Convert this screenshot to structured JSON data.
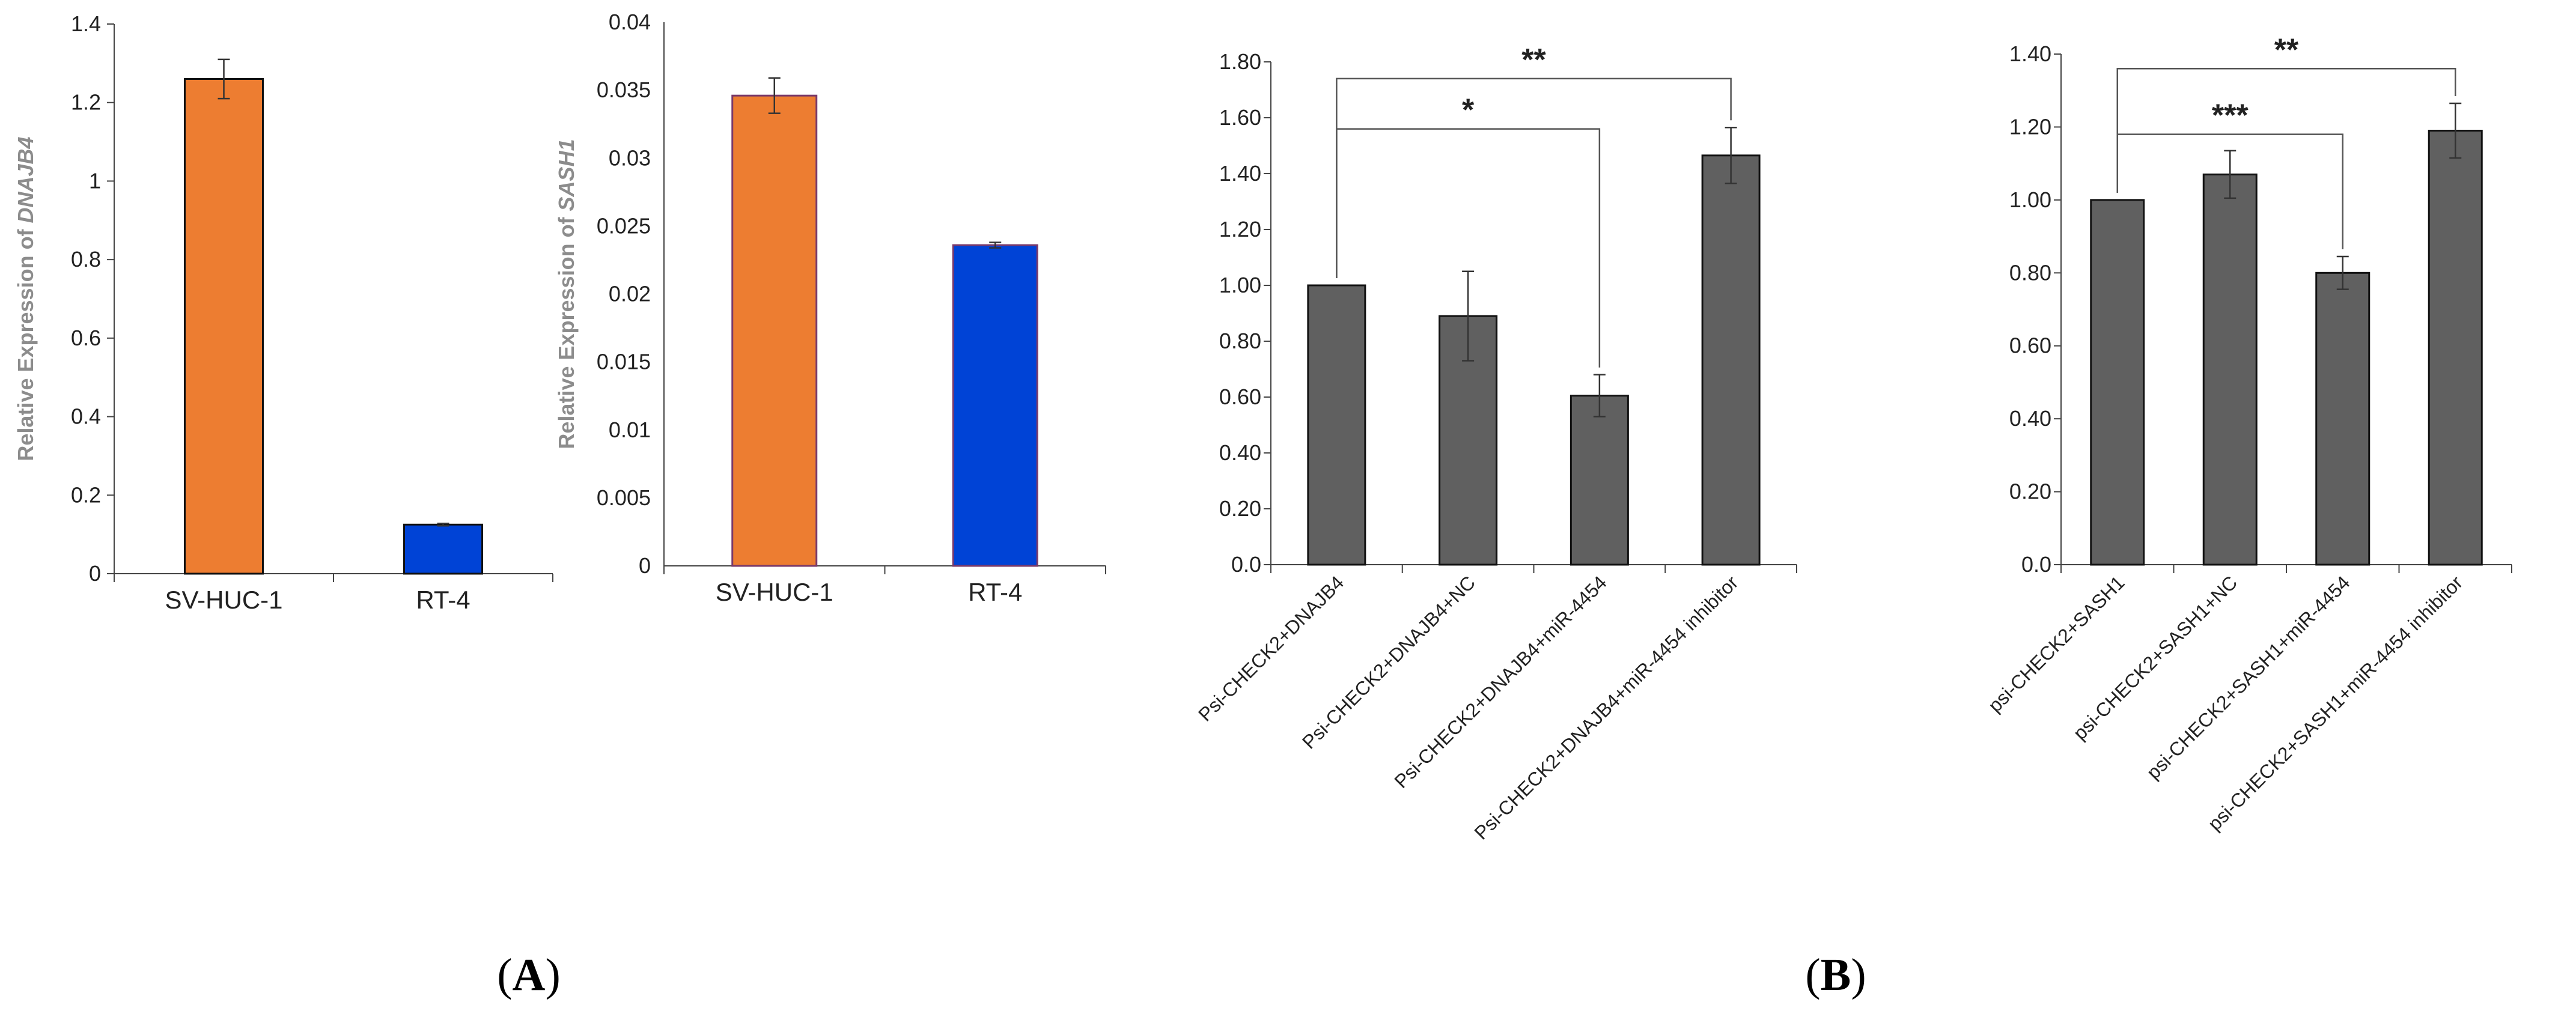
{
  "panel_labels": {
    "a": {
      "open": "(",
      "letter": "A",
      "close": ")"
    },
    "b": {
      "open": "(",
      "letter": "B",
      "close": ")"
    }
  },
  "chart_data": [
    {
      "type": "bar",
      "ylabel": {
        "prefix": "Relative Expression of ",
        "gene": "DNAJB4"
      },
      "ylim": [
        0,
        1.4
      ],
      "yticks": [
        "0",
        "0.2",
        "0.4",
        "0.6",
        "0.8",
        "1",
        "1.2",
        "1.4"
      ],
      "categories": [
        "SV-HUC-1",
        "RT-4"
      ],
      "values": [
        1.26,
        0.125
      ],
      "errors": [
        0.05,
        0.003
      ],
      "colors": [
        "#ED7D31",
        "#0043D6"
      ],
      "significance": []
    },
    {
      "type": "bar",
      "ylabel": {
        "prefix": "Relative Expression of ",
        "gene": "SASH1"
      },
      "ylim": [
        0,
        0.04
      ],
      "yticks": [
        "0",
        "0.005",
        "0.01",
        "0.015",
        "0.02",
        "0.025",
        "0.03",
        "0.035",
        "0.04"
      ],
      "categories": [
        "SV-HUC-1",
        "RT-4"
      ],
      "values": [
        0.0346,
        0.0236
      ],
      "errors": [
        0.0013,
        0.0002
      ],
      "colors": [
        "#ED7D31",
        "#0043D6"
      ],
      "significance": []
    },
    {
      "type": "bar",
      "ylim": [
        0,
        1.8
      ],
      "yticks": [
        "0.0",
        "0.20",
        "0.40",
        "0.60",
        "0.80",
        "1.00",
        "1.20",
        "1.40",
        "1.60",
        "1.80"
      ],
      "categories": [
        "Psi-CHECK2+DNAJB4",
        "Psi-CHECK2+DNAJB4+NC",
        "Psi-CHECK2+DNAJB4+miR-4454",
        "Psi-CHECK2+DNAJB4+miR-4454 inhibitor"
      ],
      "values": [
        1.0,
        0.89,
        0.605,
        1.465
      ],
      "errors": [
        0,
        0.16,
        0.075,
        0.1
      ],
      "colors": [
        "#606060",
        "#606060",
        "#606060",
        "#606060"
      ],
      "significance": [
        {
          "from": 0,
          "to": 2,
          "label": "*",
          "y": 1.56
        },
        {
          "from": 0,
          "to": 3,
          "label": "**",
          "y": 1.74
        }
      ]
    },
    {
      "type": "bar",
      "ylim": [
        0,
        1.4
      ],
      "yticks": [
        "0.0",
        "0.20",
        "0.40",
        "0.60",
        "0.80",
        "1.00",
        "1.20",
        "1.40"
      ],
      "categories": [
        "psi-CHECK2+SASH1",
        "psi-CHECK2+SASH1+NC",
        "psi-CHECK2+SASH1+miR-4454",
        "psi-CHECK2+SASH1+miR-4454 inhibitor"
      ],
      "values": [
        1.0,
        1.07,
        0.8,
        1.19
      ],
      "errors": [
        0,
        0.065,
        0.045,
        0.075
      ],
      "colors": [
        "#606060",
        "#606060",
        "#606060",
        "#606060"
      ],
      "significance": [
        {
          "from": 0,
          "to": 2,
          "label": "***",
          "y": 1.18
        },
        {
          "from": 0,
          "to": 3,
          "label": "**",
          "y": 1.36
        }
      ]
    }
  ]
}
